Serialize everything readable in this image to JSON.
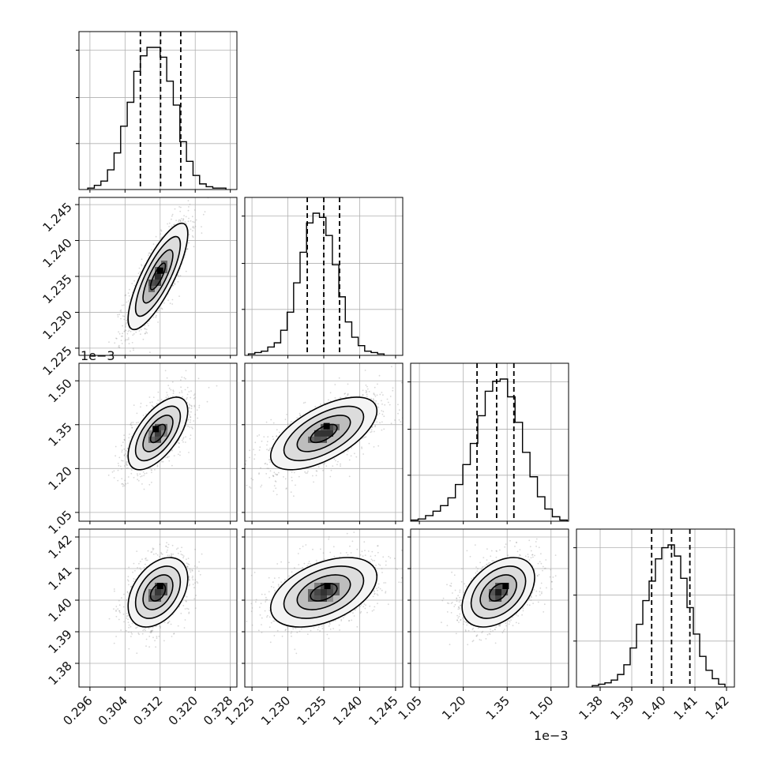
{
  "chart_data": {
    "type": "corner",
    "parameters": [
      {
        "index": 0,
        "range": [
          0.2935,
          0.3295
        ],
        "ticks": [
          0.296,
          0.304,
          0.312,
          0.32,
          0.328
        ],
        "tick_labels": [
          "0.296",
          "0.304",
          "0.312",
          "0.320",
          "0.328"
        ],
        "offset_text": "",
        "quantiles": [
          0.3075,
          0.3121,
          0.3167
        ],
        "histogram": {
          "edges": [
            0.2955,
            0.297,
            0.2985,
            0.3,
            0.3015,
            0.303,
            0.3045,
            0.306,
            0.3075,
            0.309,
            0.3105,
            0.312,
            0.3135,
            0.315,
            0.3165,
            0.318,
            0.3195,
            0.321,
            0.3225,
            0.324,
            0.3255,
            0.327
          ],
          "counts": [
            1,
            3,
            6,
            14,
            26,
            45,
            62,
            84,
            95,
            101,
            101,
            94,
            77,
            60,
            34,
            20,
            10,
            4,
            2,
            1,
            1
          ]
        }
      },
      {
        "index": 1,
        "range": [
          0.001224,
          0.001246
        ],
        "ticks": [
          0.001225,
          0.00123,
          0.001235,
          0.00124,
          0.001245
        ],
        "tick_labels": [
          "1.225",
          "1.230",
          "1.235",
          "1.240",
          "1.245"
        ],
        "offset_text": "1e−3",
        "quantiles": [
          0.0012327,
          0.001235,
          0.0012372
        ],
        "histogram": {
          "edges": [
            0.0012245,
            0.0012254,
            0.0012263,
            0.0012272,
            0.0012281,
            0.001229,
            0.0012299,
            0.0012308,
            0.0012317,
            0.0012326,
            0.0012335,
            0.0012344,
            0.0012353,
            0.0012362,
            0.0012371,
            0.001238,
            0.0012389,
            0.0012398,
            0.0012407,
            0.0012416,
            0.0012425,
            0.0012434
          ],
          "counts": [
            1,
            2,
            3,
            6,
            9,
            18,
            31,
            52,
            74,
            95,
            102,
            99,
            86,
            65,
            42,
            24,
            13,
            7,
            3,
            2,
            1
          ]
        }
      },
      {
        "index": 2,
        "range": [
          0.00102,
          0.00156
        ],
        "ticks": [
          0.00105,
          0.0012,
          0.00135,
          0.0015
        ],
        "tick_labels": [
          "1.05",
          "1.20",
          "1.35",
          "1.50"
        ],
        "offset_text": "1e−3",
        "quantiles": [
          0.001247,
          0.001314,
          0.001373
        ],
        "histogram": {
          "edges": [
            0.00102,
            0.0010455,
            0.001071,
            0.0010965,
            0.001122,
            0.0011475,
            0.001173,
            0.0011985,
            0.001224,
            0.0012495,
            0.001275,
            0.0013005,
            0.001326,
            0.0013515,
            0.001377,
            0.0014025,
            0.001428,
            0.0014535,
            0.001479,
            0.0015045,
            0.00153,
            0.0015555
          ],
          "counts": [
            1,
            2,
            5,
            9,
            14,
            21,
            33,
            51,
            70,
            95,
            117,
            126,
            128,
            112,
            89,
            62,
            40,
            22,
            11,
            4,
            1
          ]
        }
      },
      {
        "index": 3,
        "range": [
          1.3725,
          1.4225
        ],
        "ticks": [
          1.38,
          1.39,
          1.4,
          1.41,
          1.42
        ],
        "tick_labels": [
          "1.38",
          "1.39",
          "1.40",
          "1.41",
          "1.42"
        ],
        "offset_text": "",
        "quantiles": [
          1.3963,
          1.4026,
          1.4084
        ],
        "histogram": {
          "edges": [
            1.3775,
            1.3795,
            1.3815,
            1.3835,
            1.3855,
            1.3875,
            1.3895,
            1.3915,
            1.3935,
            1.3955,
            1.3975,
            1.3995,
            1.4015,
            1.4035,
            1.4055,
            1.4075,
            1.4095,
            1.4115,
            1.4135,
            1.4155,
            1.4175,
            1.4195
          ],
          "counts": [
            1,
            2,
            3,
            5,
            9,
            16,
            28,
            45,
            62,
            76,
            92,
            100,
            102,
            94,
            78,
            57,
            38,
            22,
            12,
            6,
            2
          ]
        }
      }
    ],
    "pairs": [
      {
        "x": 0,
        "y": 1,
        "center": [
          0.3115,
          0.001235
        ],
        "sigma": [
          0.0034,
          3.7e-06
        ],
        "rho": 0.8,
        "peak": [
          0.312,
          0.0012358
        ]
      },
      {
        "x": 0,
        "y": 2,
        "center": [
          0.3115,
          0.00132
        ],
        "sigma": [
          0.0034,
          6.2e-05
        ],
        "rho": 0.62,
        "peak": [
          0.311,
          0.001335
        ]
      },
      {
        "x": 1,
        "y": 2,
        "center": [
          0.001235,
          0.00132
        ],
        "sigma": [
          3.7e-06,
          6.2e-05
        ],
        "rho": 0.62,
        "peak": [
          0.0012354,
          0.001345
        ]
      },
      {
        "x": 0,
        "y": 3,
        "center": [
          0.3115,
          1.4025
        ],
        "sigma": [
          0.0034,
          0.0055
        ],
        "rho": 0.4,
        "peak": [
          0.312,
          1.4045
        ]
      },
      {
        "x": 1,
        "y": 3,
        "center": [
          0.001235,
          1.4025
        ],
        "sigma": [
          3.7e-06,
          0.0055
        ],
        "rho": 0.45,
        "peak": [
          0.0012355,
          1.4045
        ]
      },
      {
        "x": 2,
        "y": 3,
        "center": [
          0.00132,
          1.4025
        ],
        "sigma": [
          6.2e-05,
          0.0055
        ],
        "rho": 0.42,
        "peak": [
          0.001345,
          1.4045
        ]
      }
    ],
    "contour_levels_sigma": [
      0.5,
      1.0,
      1.5,
      2.0
    ],
    "grid": true,
    "colors": {
      "line": "#000000",
      "grid": "#b0b0b0",
      "points": "#8c8c8c",
      "hist2d_dark": "#1f1f1f"
    }
  }
}
